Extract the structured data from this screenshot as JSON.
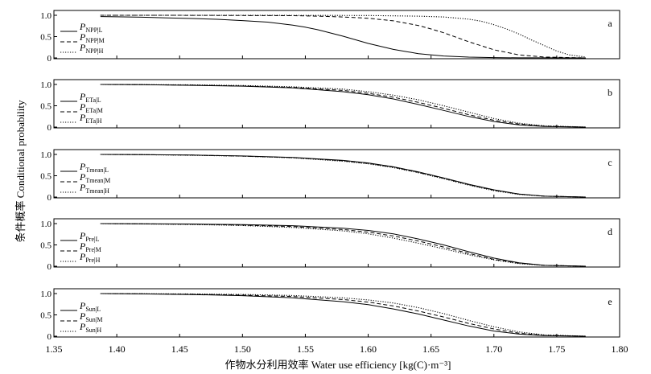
{
  "figure": {
    "xlabel": "作物水分利用效率 Water use efficiency [kg(C)·m⁻³]",
    "ylabel": "条件概率 Conditional probability"
  },
  "chart_data": [
    {
      "type": "line",
      "panel_letter": "a",
      "legend_main": "P",
      "xlim": [
        1.35,
        1.8
      ],
      "ylim": [
        0,
        1.0
      ],
      "yticks": [
        "0",
        "0.5",
        "1.0"
      ],
      "series": [
        {
          "name": "NPP|L",
          "style": "solid",
          "x": [
            1.387,
            1.4,
            1.42,
            1.44,
            1.46,
            1.48,
            1.5,
            1.52,
            1.54,
            1.55,
            1.56,
            1.58,
            1.6,
            1.62,
            1.64,
            1.66,
            1.68,
            1.7,
            1.72,
            1.74,
            1.773
          ],
          "y": [
            0.97,
            0.965,
            0.955,
            0.94,
            0.925,
            0.905,
            0.875,
            0.84,
            0.77,
            0.72,
            0.66,
            0.51,
            0.34,
            0.2,
            0.1,
            0.045,
            0.018,
            0.007,
            0.002,
            0.001,
            0.0
          ]
        },
        {
          "name": "NPP|M",
          "style": "dashed",
          "x": [
            1.387,
            1.44,
            1.5,
            1.54,
            1.56,
            1.58,
            1.6,
            1.62,
            1.64,
            1.65,
            1.66,
            1.68,
            1.7,
            1.72,
            1.74,
            1.773
          ],
          "y": [
            1.0,
            1.0,
            0.995,
            0.99,
            0.98,
            0.96,
            0.93,
            0.87,
            0.76,
            0.68,
            0.59,
            0.38,
            0.19,
            0.07,
            0.02,
            0.0
          ]
        },
        {
          "name": "NPP|H",
          "style": "dotted",
          "x": [
            1.387,
            1.5,
            1.6,
            1.64,
            1.66,
            1.68,
            1.69,
            1.7,
            1.71,
            1.72,
            1.73,
            1.74,
            1.75,
            1.76,
            1.773
          ],
          "y": [
            1.0,
            1.0,
            0.995,
            0.98,
            0.96,
            0.91,
            0.86,
            0.78,
            0.68,
            0.56,
            0.42,
            0.29,
            0.16,
            0.07,
            0.02
          ]
        }
      ]
    },
    {
      "type": "line",
      "panel_letter": "b",
      "legend_main": "P",
      "xlim": [
        1.35,
        1.8
      ],
      "ylim": [
        0,
        1.0
      ],
      "yticks": [
        "0",
        "0.5",
        "1.0"
      ],
      "series": [
        {
          "name": "ETa|L",
          "style": "solid",
          "x": [
            1.387,
            1.42,
            1.46,
            1.5,
            1.54,
            1.58,
            1.6,
            1.62,
            1.64,
            1.66,
            1.68,
            1.7,
            1.72,
            1.74,
            1.773
          ],
          "y": [
            1.0,
            0.995,
            0.98,
            0.96,
            0.92,
            0.83,
            0.76,
            0.66,
            0.53,
            0.39,
            0.25,
            0.13,
            0.05,
            0.015,
            0.0
          ]
        },
        {
          "name": "ETa|M",
          "style": "dashed",
          "x": [
            1.387,
            1.42,
            1.46,
            1.5,
            1.54,
            1.58,
            1.6,
            1.62,
            1.64,
            1.66,
            1.68,
            1.7,
            1.72,
            1.74,
            1.773
          ],
          "y": [
            1.0,
            0.995,
            0.985,
            0.965,
            0.93,
            0.86,
            0.79,
            0.7,
            0.58,
            0.44,
            0.29,
            0.16,
            0.07,
            0.02,
            0.0
          ]
        },
        {
          "name": "ETa|H",
          "style": "dotted",
          "x": [
            1.387,
            1.42,
            1.46,
            1.5,
            1.54,
            1.58,
            1.6,
            1.62,
            1.64,
            1.66,
            1.68,
            1.7,
            1.72,
            1.74,
            1.773
          ],
          "y": [
            1.0,
            0.997,
            0.99,
            0.975,
            0.945,
            0.89,
            0.83,
            0.75,
            0.64,
            0.5,
            0.35,
            0.2,
            0.09,
            0.03,
            0.0
          ]
        }
      ]
    },
    {
      "type": "line",
      "panel_letter": "c",
      "legend_main": "P",
      "xlim": [
        1.35,
        1.8
      ],
      "ylim": [
        0,
        1.0
      ],
      "yticks": [
        "0",
        "0.5",
        "1.0"
      ],
      "series": [
        {
          "name": "Tmean|L",
          "style": "solid",
          "x": [
            1.387,
            1.42,
            1.46,
            1.5,
            1.54,
            1.58,
            1.6,
            1.62,
            1.64,
            1.66,
            1.68,
            1.7,
            1.72,
            1.74,
            1.773
          ],
          "y": [
            1.0,
            0.995,
            0.985,
            0.965,
            0.93,
            0.86,
            0.8,
            0.71,
            0.59,
            0.45,
            0.3,
            0.17,
            0.07,
            0.02,
            0.0
          ]
        },
        {
          "name": "Tmean|M",
          "style": "dashed",
          "x": [
            1.387,
            1.42,
            1.46,
            1.5,
            1.54,
            1.58,
            1.6,
            1.62,
            1.64,
            1.66,
            1.68,
            1.7,
            1.72,
            1.74,
            1.773
          ],
          "y": [
            1.0,
            0.995,
            0.985,
            0.96,
            0.925,
            0.85,
            0.79,
            0.7,
            0.58,
            0.44,
            0.29,
            0.16,
            0.07,
            0.02,
            0.0
          ]
        },
        {
          "name": "Tmean|H",
          "style": "dotted",
          "x": [
            1.387,
            1.42,
            1.46,
            1.5,
            1.54,
            1.58,
            1.6,
            1.62,
            1.64,
            1.66,
            1.68,
            1.7,
            1.72,
            1.74,
            1.773
          ],
          "y": [
            1.0,
            0.995,
            0.98,
            0.96,
            0.92,
            0.84,
            0.78,
            0.69,
            0.57,
            0.43,
            0.28,
            0.15,
            0.06,
            0.02,
            0.0
          ]
        }
      ]
    },
    {
      "type": "line",
      "panel_letter": "d",
      "legend_main": "P",
      "xlim": [
        1.35,
        1.8
      ],
      "ylim": [
        0,
        1.0
      ],
      "yticks": [
        "0",
        "0.5",
        "1.0"
      ],
      "series": [
        {
          "name": "Pre|L",
          "style": "solid",
          "x": [
            1.387,
            1.42,
            1.46,
            1.5,
            1.54,
            1.58,
            1.6,
            1.62,
            1.64,
            1.66,
            1.68,
            1.7,
            1.72,
            1.74,
            1.773
          ],
          "y": [
            1.0,
            0.997,
            0.99,
            0.975,
            0.95,
            0.89,
            0.84,
            0.76,
            0.64,
            0.5,
            0.34,
            0.19,
            0.08,
            0.02,
            0.0
          ]
        },
        {
          "name": "Pre|M",
          "style": "dashed",
          "x": [
            1.387,
            1.42,
            1.46,
            1.5,
            1.54,
            1.58,
            1.6,
            1.62,
            1.64,
            1.66,
            1.68,
            1.7,
            1.72,
            1.74,
            1.773
          ],
          "y": [
            1.0,
            0.995,
            0.985,
            0.965,
            0.93,
            0.86,
            0.8,
            0.71,
            0.59,
            0.45,
            0.3,
            0.16,
            0.07,
            0.02,
            0.0
          ]
        },
        {
          "name": "Pre|H",
          "style": "dotted",
          "x": [
            1.387,
            1.42,
            1.46,
            1.5,
            1.54,
            1.58,
            1.6,
            1.62,
            1.64,
            1.66,
            1.68,
            1.7,
            1.72,
            1.74,
            1.773
          ],
          "y": [
            1.0,
            0.993,
            0.98,
            0.955,
            0.91,
            0.83,
            0.76,
            0.66,
            0.54,
            0.41,
            0.27,
            0.15,
            0.06,
            0.02,
            0.0
          ]
        }
      ]
    },
    {
      "type": "line",
      "panel_letter": "e",
      "legend_main": "P",
      "xlim": [
        1.35,
        1.8
      ],
      "ylim": [
        0,
        1.0
      ],
      "yticks": [
        "0",
        "0.5",
        "1.0"
      ],
      "series": [
        {
          "name": "Sun|L",
          "style": "solid",
          "x": [
            1.387,
            1.42,
            1.46,
            1.5,
            1.54,
            1.58,
            1.6,
            1.62,
            1.64,
            1.66,
            1.68,
            1.7,
            1.72,
            1.74,
            1.773
          ],
          "y": [
            1.0,
            0.993,
            0.978,
            0.95,
            0.9,
            0.81,
            0.74,
            0.64,
            0.52,
            0.38,
            0.24,
            0.12,
            0.05,
            0.015,
            0.0
          ]
        },
        {
          "name": "Sun|M",
          "style": "dashed",
          "x": [
            1.387,
            1.42,
            1.46,
            1.5,
            1.54,
            1.58,
            1.6,
            1.62,
            1.64,
            1.66,
            1.68,
            1.7,
            1.72,
            1.74,
            1.773
          ],
          "y": [
            1.0,
            0.995,
            0.985,
            0.965,
            0.93,
            0.86,
            0.8,
            0.71,
            0.59,
            0.45,
            0.3,
            0.17,
            0.07,
            0.02,
            0.0
          ]
        },
        {
          "name": "Sun|H",
          "style": "dotted",
          "x": [
            1.387,
            1.42,
            1.46,
            1.5,
            1.54,
            1.58,
            1.6,
            1.62,
            1.64,
            1.66,
            1.68,
            1.7,
            1.72,
            1.74,
            1.773
          ],
          "y": [
            1.0,
            0.997,
            0.99,
            0.98,
            0.955,
            0.9,
            0.85,
            0.78,
            0.67,
            0.53,
            0.37,
            0.22,
            0.1,
            0.03,
            0.0
          ]
        }
      ]
    }
  ],
  "xticks": [
    "1.35",
    "1.40",
    "1.45",
    "1.50",
    "1.55",
    "1.60",
    "1.65",
    "1.70",
    "1.75",
    "1.80"
  ]
}
